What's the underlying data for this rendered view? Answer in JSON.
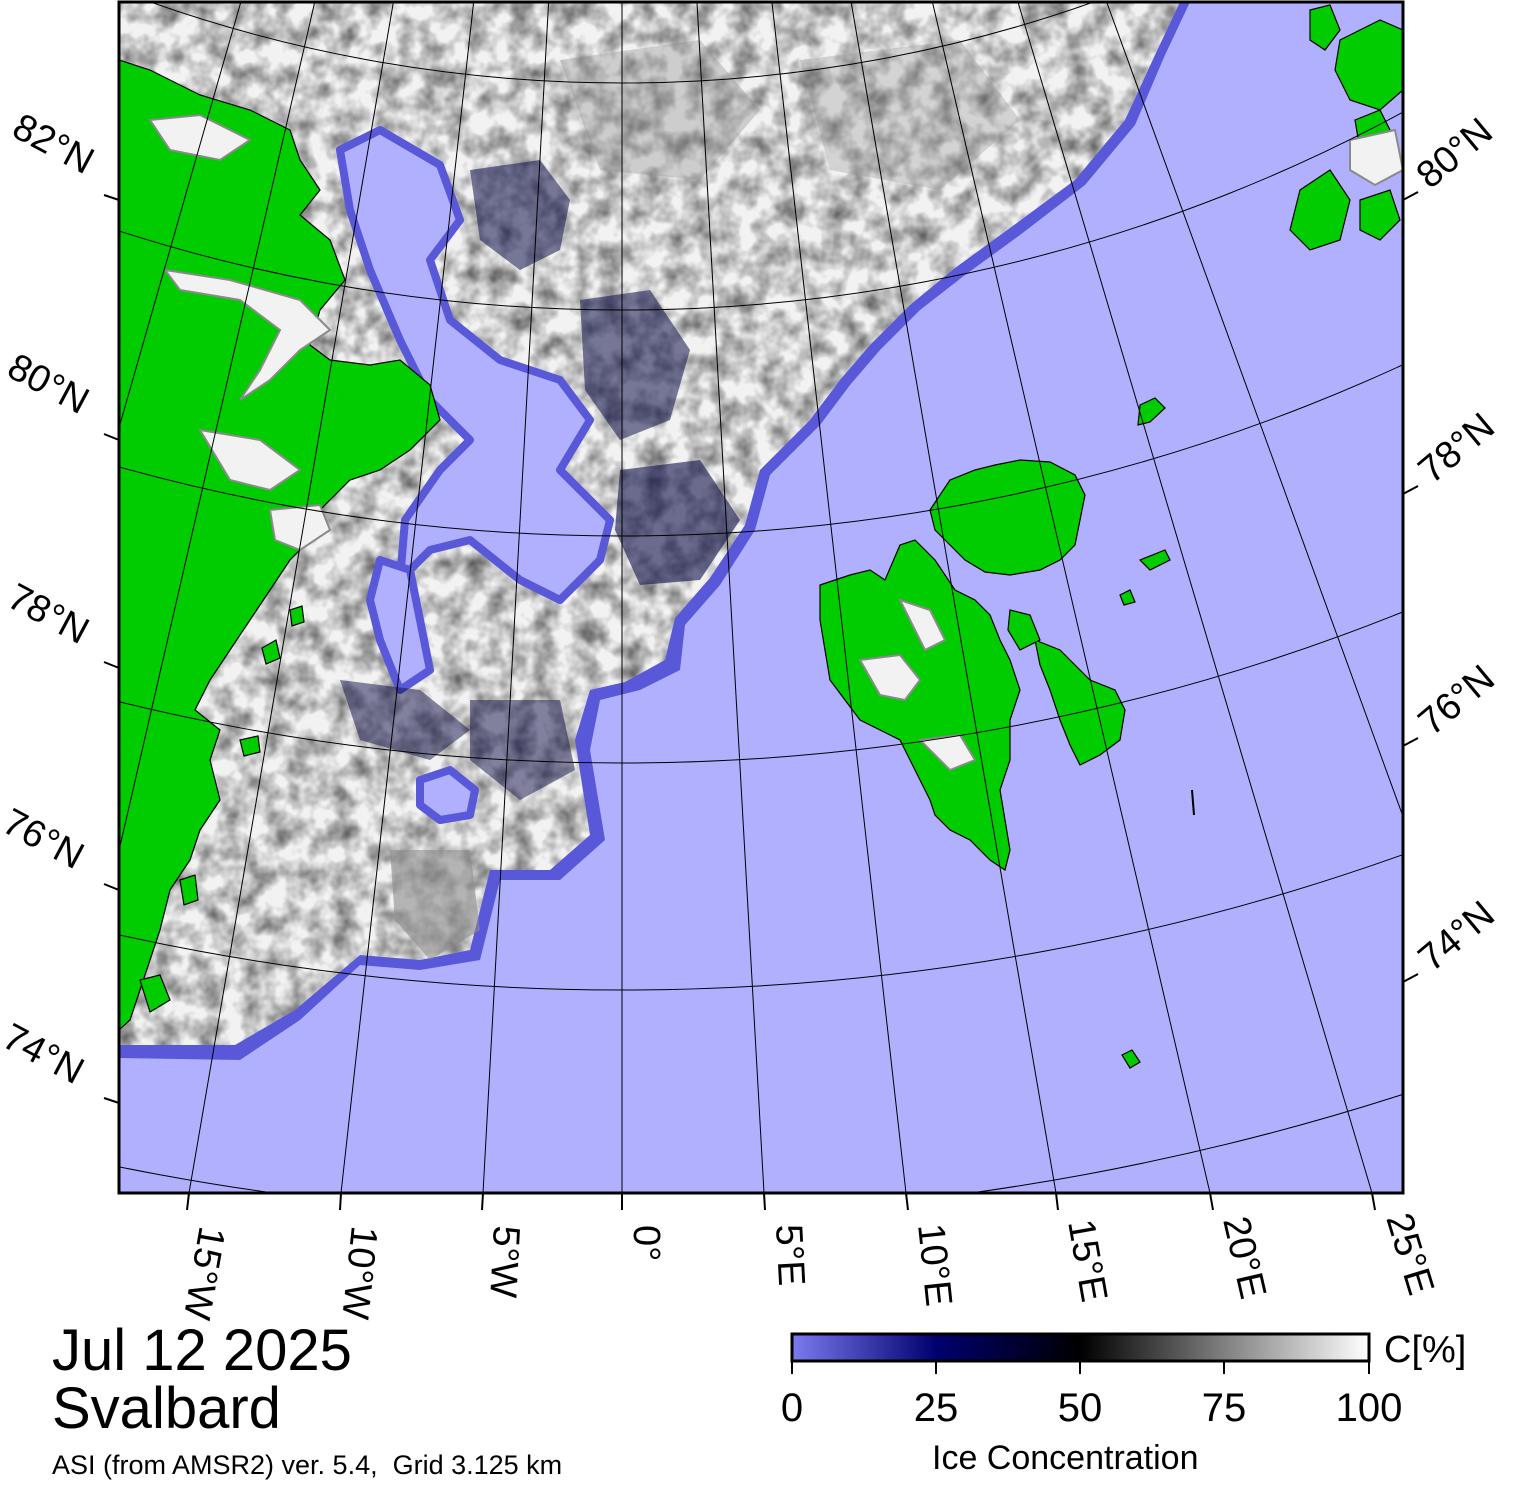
{
  "title": {
    "date": "Jul 12 2025",
    "region": "Svalbard",
    "source": "ASI (from AMSR2) ver. 5.4,  Grid 3.125 km"
  },
  "colorbar": {
    "unit": "C[%]",
    "title": "Ice Concentration",
    "ticks": [
      "0",
      "25",
      "50",
      "75",
      "100"
    ],
    "colors": [
      "#7b7bf0",
      "#00006e",
      "#000000",
      "#808080",
      "#ffffff"
    ]
  },
  "map": {
    "colors": {
      "ocean": "#b0b0ff",
      "land": "#00cc00",
      "ice_high": "#f2f2f2",
      "ice_mid": "#8a8a8a",
      "ice_low": "#10104a",
      "ice_edge": "#5858d8",
      "coast": "#000000",
      "graticule": "#000000"
    },
    "lat_labels_left": [
      "82°N",
      "80°N",
      "78°N",
      "76°N",
      "74°N"
    ],
    "lat_labels_right": [
      "80°N",
      "78°N",
      "76°N",
      "74°N"
    ],
    "lon_labels": [
      "15°W",
      "10°W",
      "5°W",
      "0°",
      "5°E",
      "10°E",
      "15°E",
      "20°E",
      "25°E"
    ]
  }
}
